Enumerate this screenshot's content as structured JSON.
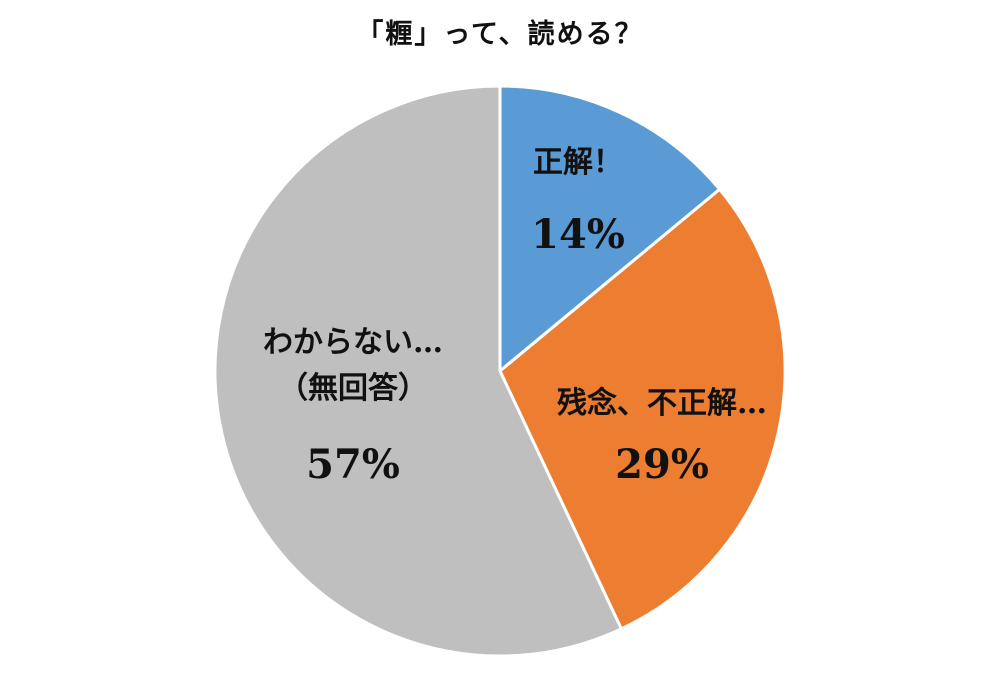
{
  "chart_data": {
    "type": "pie",
    "title": "「糎」って、読める？",
    "slices": [
      {
        "name": "正解！",
        "label_lines": [
          "正解！"
        ],
        "value": 14,
        "value_label": "14%",
        "color": "#5B9BD5"
      },
      {
        "name": "残念、不正解…",
        "label_lines": [
          "残念、不正解…"
        ],
        "value": 29,
        "value_label": "29%",
        "color": "#ED7D31"
      },
      {
        "name": "わからない…（無回答）",
        "label_lines": [
          "わからない…",
          "（無回答）"
        ],
        "value": 57,
        "value_label": "57%",
        "color": "#BFBFBF"
      }
    ],
    "start_angle": "12 o'clock",
    "direction": "clockwise",
    "legend": "none",
    "data_labels": "inside"
  }
}
